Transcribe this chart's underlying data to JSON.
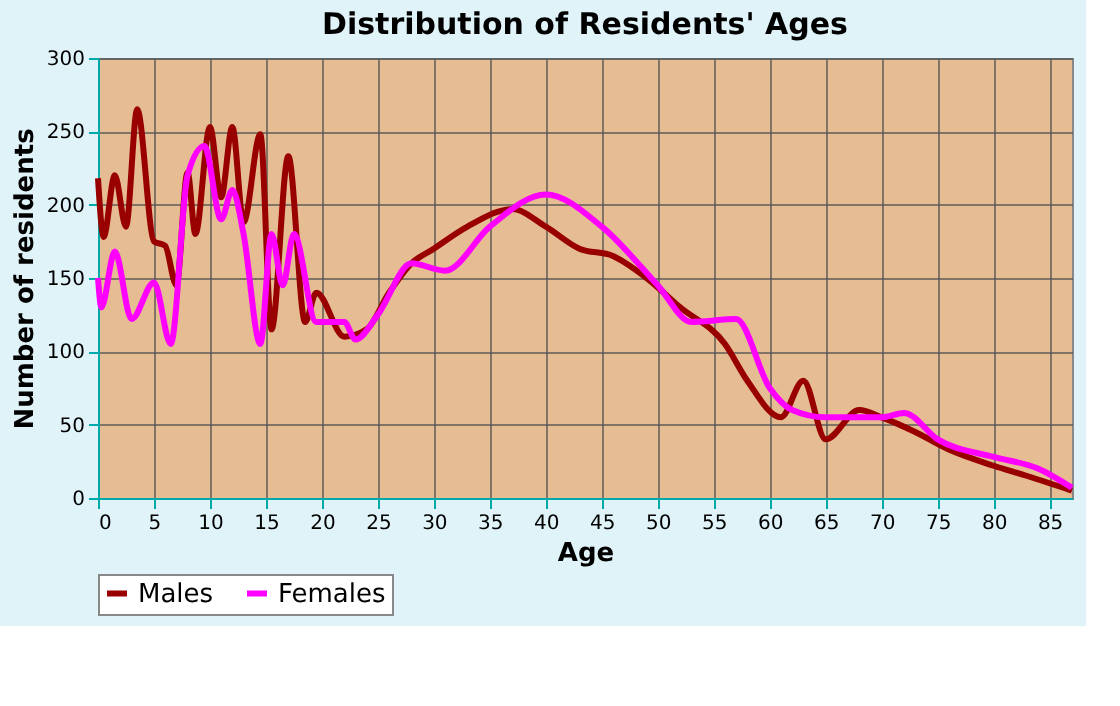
{
  "chart_data": {
    "type": "line",
    "title": "Distribution of Residents' Ages",
    "xlabel": "Age",
    "ylabel": "Number of residents",
    "xlim": [
      0,
      87
    ],
    "xticks": [
      0,
      5,
      10,
      15,
      20,
      25,
      30,
      35,
      40,
      45,
      50,
      55,
      60,
      65,
      70,
      75,
      80,
      85
    ],
    "ylim": [
      0,
      300
    ],
    "yticks": [
      0,
      50,
      100,
      150,
      200,
      250,
      300
    ],
    "grid": true,
    "legend": "bottom",
    "marker": "none",
    "line_style": "solid",
    "series": [
      {
        "name": "Males",
        "color": "#990000",
        "x": [
          0,
          0.5,
          1.5,
          2.5,
          3.5,
          5,
          6,
          7,
          8,
          8.7,
          10,
          11,
          12,
          13,
          14.5,
          15.5,
          17,
          18.5,
          19.5,
          22,
          24,
          26,
          28,
          30,
          33,
          37,
          40,
          43,
          46,
          49,
          52,
          56,
          58,
          61,
          63,
          65,
          68,
          70,
          73,
          76,
          80,
          83,
          87
        ],
        "values": [
          218,
          178,
          220,
          185,
          265,
          175,
          172,
          145,
          222,
          180,
          253,
          205,
          253,
          188,
          248,
          115,
          233,
          120,
          140,
          110,
          115,
          140,
          160,
          170,
          185,
          197,
          185,
          170,
          165,
          150,
          130,
          105,
          80,
          55,
          80,
          40,
          60,
          55,
          45,
          33,
          22,
          15,
          5
        ]
      },
      {
        "name": "Females",
        "color": "#ff00ff",
        "x": [
          0,
          0.3,
          1.5,
          3,
          5,
          6.5,
          8,
          9.5,
          11,
          12,
          13,
          14.5,
          15.5,
          16.5,
          17.5,
          19.5,
          22,
          23,
          25,
          28,
          31,
          35,
          40,
          45,
          50,
          53,
          57,
          60,
          62,
          65,
          70,
          72,
          75,
          80,
          84,
          87
        ],
        "values": [
          150,
          130,
          168,
          122,
          147,
          105,
          220,
          240,
          190,
          210,
          180,
          105,
          180,
          145,
          180,
          120,
          120,
          108,
          125,
          160,
          155,
          185,
          207,
          185,
          145,
          120,
          122,
          75,
          60,
          55,
          55,
          58,
          40,
          28,
          20,
          7
        ]
      }
    ]
  }
}
